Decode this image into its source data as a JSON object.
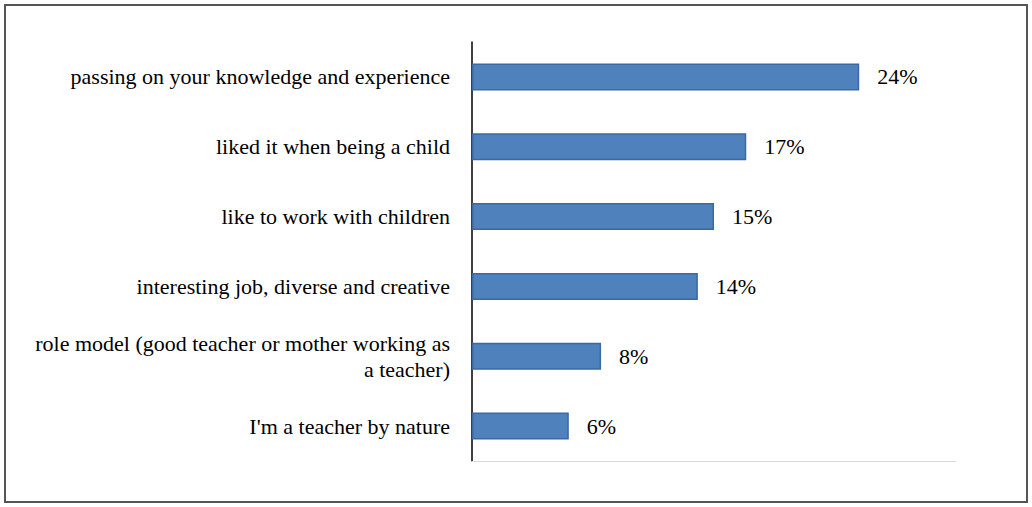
{
  "chart_data": {
    "type": "bar",
    "orientation": "horizontal",
    "categories": [
      "passing on your knowledge and experience",
      "liked it when being a child",
      "like to work with children",
      "interesting job, diverse and creative",
      "role model (good teacher or mother working as a teacher)",
      "I'm a teacher by nature"
    ],
    "values": [
      24,
      17,
      15,
      14,
      8,
      6
    ],
    "value_labels": [
      "24%",
      "17%",
      "15%",
      "14%",
      "8%",
      "6%"
    ],
    "color": "#4f81bd",
    "xlim": [
      0,
      30
    ],
    "grid": false,
    "data_labels": true,
    "tick_labels": "y"
  }
}
